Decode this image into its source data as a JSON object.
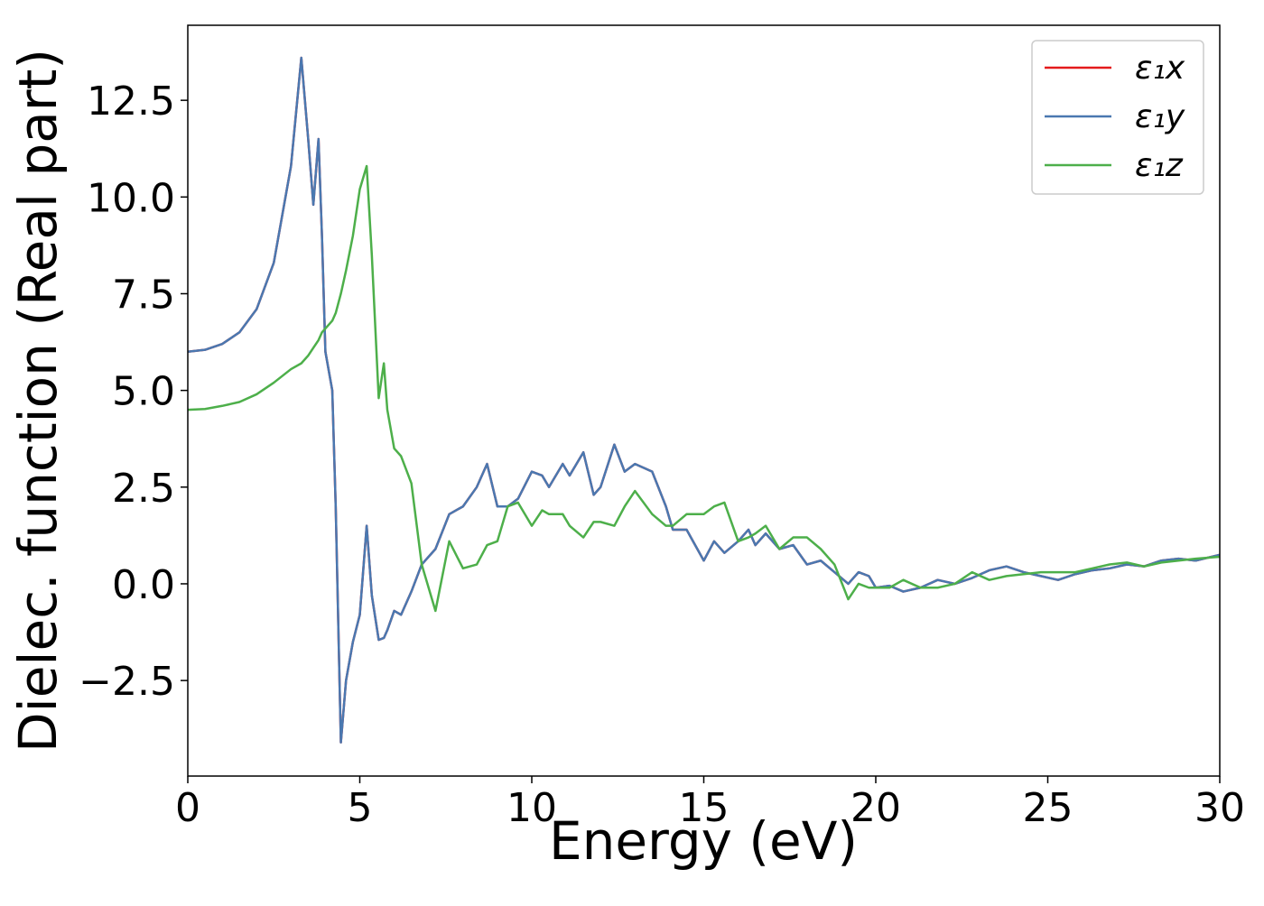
{
  "chart_data": {
    "type": "line",
    "xlabel": "Energy (eV)",
    "ylabel": "Dielec. function (Real part)",
    "x": [
      0,
      0.5,
      1,
      1.5,
      2,
      2.5,
      3,
      3.3,
      3.5,
      3.65,
      3.8,
      3.9,
      4.0,
      4.2,
      4.3,
      4.45,
      4.6,
      4.8,
      5.0,
      5.2,
      5.35,
      5.55,
      5.7,
      5.8,
      6.0,
      6.2,
      6.5,
      6.8,
      7.2,
      7.6,
      8.0,
      8.4,
      8.7,
      9.0,
      9.3,
      9.6,
      10.0,
      10.3,
      10.5,
      10.9,
      11.1,
      11.5,
      11.8,
      12.0,
      12.4,
      12.7,
      13.0,
      13.5,
      13.9,
      14.1,
      14.5,
      15.0,
      15.3,
      15.6,
      16.0,
      16.3,
      16.5,
      16.8,
      17.2,
      17.6,
      18.0,
      18.4,
      18.8,
      19.2,
      19.5,
      19.8,
      20.0,
      20.4,
      20.8,
      21.3,
      21.8,
      22.3,
      22.8,
      23.3,
      23.8,
      24.3,
      24.8,
      25.3,
      25.8,
      26.3,
      26.8,
      27.3,
      27.8,
      28.3,
      28.8,
      29.3,
      30
    ],
    "series": [
      {
        "name": "ε₁x",
        "color": "#e41a1c",
        "values": [
          6.0,
          6.05,
          6.2,
          6.5,
          7.1,
          8.3,
          10.8,
          13.6,
          11.5,
          9.8,
          11.5,
          9.0,
          6.0,
          5.0,
          2.0,
          -4.1,
          -2.5,
          -1.5,
          -0.8,
          1.5,
          -0.3,
          -1.45,
          -1.4,
          -1.2,
          -0.7,
          -0.8,
          -0.2,
          0.5,
          0.9,
          1.8,
          2.0,
          2.5,
          3.1,
          2.0,
          2.0,
          2.2,
          2.9,
          2.8,
          2.5,
          3.1,
          2.8,
          3.4,
          2.3,
          2.5,
          3.6,
          2.9,
          3.1,
          2.9,
          2.0,
          1.4,
          1.4,
          0.6,
          1.1,
          0.8,
          1.1,
          1.4,
          1.0,
          1.3,
          0.9,
          1.0,
          0.5,
          0.6,
          0.3,
          0.0,
          0.3,
          0.2,
          -0.1,
          -0.05,
          -0.2,
          -0.1,
          0.1,
          0.0,
          0.15,
          0.35,
          0.45,
          0.3,
          0.2,
          0.1,
          0.25,
          0.35,
          0.4,
          0.5,
          0.45,
          0.6,
          0.65,
          0.6,
          0.75
        ]
      },
      {
        "name": "ε₁y",
        "color": "#4a78b0",
        "values": [
          6.0,
          6.05,
          6.2,
          6.5,
          7.1,
          8.3,
          10.8,
          13.6,
          11.5,
          9.8,
          11.5,
          9.0,
          6.0,
          5.0,
          2.0,
          -4.1,
          -2.5,
          -1.5,
          -0.8,
          1.5,
          -0.3,
          -1.45,
          -1.4,
          -1.2,
          -0.7,
          -0.8,
          -0.2,
          0.5,
          0.9,
          1.8,
          2.0,
          2.5,
          3.1,
          2.0,
          2.0,
          2.2,
          2.9,
          2.8,
          2.5,
          3.1,
          2.8,
          3.4,
          2.3,
          2.5,
          3.6,
          2.9,
          3.1,
          2.9,
          2.0,
          1.4,
          1.4,
          0.6,
          1.1,
          0.8,
          1.1,
          1.4,
          1.0,
          1.3,
          0.9,
          1.0,
          0.5,
          0.6,
          0.3,
          0.0,
          0.3,
          0.2,
          -0.1,
          -0.05,
          -0.2,
          -0.1,
          0.1,
          0.0,
          0.15,
          0.35,
          0.45,
          0.3,
          0.2,
          0.1,
          0.25,
          0.35,
          0.4,
          0.5,
          0.45,
          0.6,
          0.65,
          0.6,
          0.75
        ]
      },
      {
        "name": "ε₁z",
        "color": "#4daf4a",
        "values": [
          4.5,
          4.52,
          4.6,
          4.7,
          4.9,
          5.2,
          5.55,
          5.7,
          5.9,
          6.1,
          6.3,
          6.5,
          6.6,
          6.8,
          7.0,
          7.5,
          8.1,
          9.0,
          10.2,
          10.8,
          8.5,
          4.8,
          5.7,
          4.5,
          3.5,
          3.3,
          2.6,
          0.5,
          -0.7,
          1.1,
          0.4,
          0.5,
          1.0,
          1.1,
          2.0,
          2.1,
          1.5,
          1.9,
          1.8,
          1.8,
          1.5,
          1.2,
          1.6,
          1.6,
          1.5,
          2.0,
          2.4,
          1.8,
          1.5,
          1.5,
          1.8,
          1.8,
          2.0,
          2.1,
          1.1,
          1.2,
          1.3,
          1.5,
          0.9,
          1.2,
          1.2,
          0.9,
          0.5,
          -0.4,
          0.0,
          -0.1,
          -0.1,
          -0.1,
          0.1,
          -0.1,
          -0.1,
          0.0,
          0.3,
          0.1,
          0.2,
          0.25,
          0.3,
          0.3,
          0.3,
          0.4,
          0.5,
          0.55,
          0.45,
          0.55,
          0.6,
          0.65,
          0.7
        ]
      }
    ],
    "xlim": [
      0,
      30
    ],
    "xticks": [
      0,
      5,
      10,
      15,
      20,
      25,
      30
    ],
    "ylim": [
      -4.97,
      14.44
    ],
    "yticks": [
      {
        "value": -2.5,
        "label": "−2.5"
      },
      {
        "value": 0,
        "label": "0.0"
      },
      2.5,
      {
        "value": 5,
        "label": "5.0"
      },
      7.5,
      {
        "value": 10,
        "label": "10.0"
      },
      12.5
    ],
    "grid": false,
    "legend": "upper right"
  }
}
